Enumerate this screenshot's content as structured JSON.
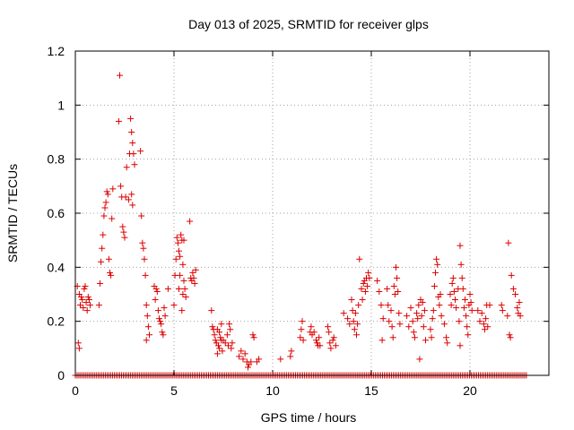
{
  "chart_data": {
    "type": "scatter",
    "title": "Day 013 of 2025, SRMTID for receiver glps",
    "xlabel": "GPS time / hours",
    "ylabel": "SRMTID / TECUs",
    "xlim": [
      0,
      24
    ],
    "ylim": [
      0,
      1.2
    ],
    "xticks": [
      0,
      5,
      10,
      15,
      20
    ],
    "xtick_labels": [
      "0",
      "5",
      "10",
      "15",
      "20"
    ],
    "yticks": [
      0,
      0.2,
      0.4,
      0.6,
      0.8,
      1.0,
      1.2
    ],
    "ytick_labels": [
      "0",
      "0.2",
      "0.4",
      "0.6",
      "0.8",
      "1",
      "1.2"
    ],
    "grid": true,
    "marker": "+",
    "series": [
      {
        "name": "SRMTID",
        "color": "#dd0000",
        "baseline": {
          "y": 0,
          "x_from": 0,
          "x_to": 22.9,
          "step": 0.09
        },
        "points": [
          [
            0.1,
            0.33
          ],
          [
            0.15,
            0.12
          ],
          [
            0.2,
            0.3
          ],
          [
            0.25,
            0.26
          ],
          [
            0.3,
            0.29
          ],
          [
            0.35,
            0.28
          ],
          [
            0.4,
            0.25
          ],
          [
            0.45,
            0.32
          ],
          [
            0.5,
            0.33
          ],
          [
            0.55,
            0.27
          ],
          [
            0.6,
            0.24
          ],
          [
            0.65,
            0.29
          ],
          [
            0.7,
            0.28
          ],
          [
            0.75,
            0.26
          ],
          [
            0.2,
            0.1
          ],
          [
            1.2,
            0.26
          ],
          [
            1.25,
            0.34
          ],
          [
            1.3,
            0.42
          ],
          [
            1.35,
            0.47
          ],
          [
            1.4,
            0.52
          ],
          [
            1.45,
            0.59
          ],
          [
            1.5,
            0.62
          ],
          [
            1.55,
            0.64
          ],
          [
            1.6,
            0.68
          ],
          [
            1.65,
            0.67
          ],
          [
            1.7,
            0.43
          ],
          [
            1.75,
            0.38
          ],
          [
            1.8,
            0.37
          ],
          [
            1.85,
            0.58
          ],
          [
            1.9,
            0.69
          ],
          [
            2.2,
            0.94
          ],
          [
            2.25,
            1.11
          ],
          [
            2.3,
            0.7
          ],
          [
            2.35,
            0.66
          ],
          [
            2.4,
            0.55
          ],
          [
            2.45,
            0.53
          ],
          [
            2.5,
            0.51
          ],
          [
            2.55,
            0.66
          ],
          [
            2.6,
            0.77
          ],
          [
            2.7,
            0.65
          ],
          [
            2.75,
            0.82
          ],
          [
            2.8,
            0.95
          ],
          [
            2.85,
            0.9
          ],
          [
            2.9,
            0.86
          ],
          [
            2.95,
            0.82
          ],
          [
            3.0,
            0.78
          ],
          [
            2.85,
            0.67
          ],
          [
            2.9,
            0.63
          ],
          [
            3.3,
            0.83
          ],
          [
            3.35,
            0.59
          ],
          [
            3.4,
            0.49
          ],
          [
            3.45,
            0.47
          ],
          [
            3.5,
            0.43
          ],
          [
            3.55,
            0.37
          ],
          [
            3.6,
            0.26
          ],
          [
            3.65,
            0.22
          ],
          [
            3.7,
            0.18
          ],
          [
            3.75,
            0.15
          ],
          [
            3.6,
            0.13
          ],
          [
            4.0,
            0.33
          ],
          [
            4.05,
            0.28
          ],
          [
            4.1,
            0.32
          ],
          [
            4.15,
            0.31
          ],
          [
            4.2,
            0.24
          ],
          [
            4.25,
            0.21
          ],
          [
            4.3,
            0.2
          ],
          [
            4.35,
            0.19
          ],
          [
            4.4,
            0.16
          ],
          [
            4.45,
            0.15
          ],
          [
            4.5,
            0.25
          ],
          [
            4.55,
            0.22
          ],
          [
            4.7,
            0.32
          ],
          [
            5.0,
            0.26
          ],
          [
            5.05,
            0.37
          ],
          [
            5.1,
            0.43
          ],
          [
            5.15,
            0.51
          ],
          [
            5.2,
            0.49
          ],
          [
            5.25,
            0.46
          ],
          [
            5.3,
            0.44
          ],
          [
            5.35,
            0.52
          ],
          [
            5.4,
            0.5
          ],
          [
            5.45,
            0.41
          ],
          [
            5.5,
            0.35
          ],
          [
            5.55,
            0.32
          ],
          [
            5.6,
            0.29
          ],
          [
            5.4,
            0.24
          ],
          [
            5.45,
            0.3
          ],
          [
            5.3,
            0.37
          ],
          [
            5.25,
            0.32
          ],
          [
            5.5,
            0.5
          ],
          [
            5.8,
            0.57
          ],
          [
            5.85,
            0.36
          ],
          [
            5.9,
            0.35
          ],
          [
            5.95,
            0.38
          ],
          [
            6.0,
            0.36
          ],
          [
            6.05,
            0.34
          ],
          [
            6.1,
            0.39
          ],
          [
            6.9,
            0.24
          ],
          [
            6.95,
            0.18
          ],
          [
            7.0,
            0.17
          ],
          [
            7.05,
            0.15
          ],
          [
            7.1,
            0.13
          ],
          [
            7.15,
            0.12
          ],
          [
            7.2,
            0.17
          ],
          [
            7.25,
            0.11
          ],
          [
            7.3,
            0.1
          ],
          [
            7.35,
            0.14
          ],
          [
            7.4,
            0.13
          ],
          [
            7.45,
            0.09
          ],
          [
            7.5,
            0.13
          ],
          [
            7.6,
            0.12
          ],
          [
            7.7,
            0.15
          ],
          [
            7.75,
            0.11
          ],
          [
            7.8,
            0.19
          ],
          [
            7.85,
            0.17
          ],
          [
            7.9,
            0.1
          ],
          [
            7.95,
            0.12
          ],
          [
            7.2,
            0.08
          ],
          [
            7.3,
            0.16
          ],
          [
            7.4,
            0.19
          ],
          [
            8.3,
            0.07
          ],
          [
            8.4,
            0.09
          ],
          [
            8.5,
            0.06
          ],
          [
            8.6,
            0.08
          ],
          [
            8.7,
            0.05
          ],
          [
            8.75,
            0.03
          ],
          [
            8.8,
            0.04
          ],
          [
            8.9,
            0.05
          ],
          [
            9.0,
            0.15
          ],
          [
            9.05,
            0.14
          ],
          [
            9.2,
            0.05
          ],
          [
            9.3,
            0.06
          ],
          [
            10.4,
            0.06
          ],
          [
            10.9,
            0.07
          ],
          [
            10.95,
            0.09
          ],
          [
            11.4,
            0.14
          ],
          [
            11.45,
            0.17
          ],
          [
            11.5,
            0.2
          ],
          [
            11.55,
            0.13
          ],
          [
            11.9,
            0.16
          ],
          [
            11.95,
            0.18
          ],
          [
            12.0,
            0.15
          ],
          [
            12.1,
            0.16
          ],
          [
            12.2,
            0.13
          ],
          [
            12.25,
            0.12
          ],
          [
            12.3,
            0.11
          ],
          [
            12.35,
            0.14
          ],
          [
            12.4,
            0.11
          ],
          [
            12.8,
            0.18
          ],
          [
            12.85,
            0.16
          ],
          [
            12.9,
            0.12
          ],
          [
            12.95,
            0.1
          ],
          [
            13.05,
            0.13
          ],
          [
            13.1,
            0.14
          ],
          [
            13.2,
            0.11
          ],
          [
            13.6,
            0.23
          ],
          [
            13.8,
            0.21
          ],
          [
            13.9,
            0.19
          ],
          [
            14.0,
            0.28
          ],
          [
            14.05,
            0.24
          ],
          [
            14.1,
            0.2
          ],
          [
            14.15,
            0.17
          ],
          [
            14.2,
            0.23
          ],
          [
            14.25,
            0.15
          ],
          [
            14.3,
            0.19
          ],
          [
            14.35,
            0.26
          ],
          [
            14.4,
            0.43
          ],
          [
            14.5,
            0.32
          ],
          [
            14.55,
            0.28
          ],
          [
            14.6,
            0.34
          ],
          [
            14.65,
            0.35
          ],
          [
            14.7,
            0.31
          ],
          [
            14.75,
            0.36
          ],
          [
            14.8,
            0.33
          ],
          [
            14.85,
            0.38
          ],
          [
            14.9,
            0.36
          ],
          [
            15.3,
            0.35
          ],
          [
            15.4,
            0.31
          ],
          [
            15.5,
            0.26
          ],
          [
            15.55,
            0.13
          ],
          [
            15.6,
            0.21
          ],
          [
            15.8,
            0.32
          ],
          [
            15.85,
            0.26
          ],
          [
            15.9,
            0.2
          ],
          [
            16.0,
            0.24
          ],
          [
            16.05,
            0.18
          ],
          [
            16.1,
            0.14
          ],
          [
            16.15,
            0.33
          ],
          [
            16.2,
            0.3
          ],
          [
            16.25,
            0.4
          ],
          [
            16.3,
            0.36
          ],
          [
            16.35,
            0.31
          ],
          [
            16.4,
            0.23
          ],
          [
            16.45,
            0.19
          ],
          [
            16.8,
            0.22
          ],
          [
            16.9,
            0.18
          ],
          [
            17.0,
            0.25
          ],
          [
            17.1,
            0.2
          ],
          [
            17.15,
            0.16
          ],
          [
            17.2,
            0.14
          ],
          [
            17.3,
            0.23
          ],
          [
            17.35,
            0.21
          ],
          [
            17.4,
            0.26
          ],
          [
            17.45,
            0.06
          ],
          [
            17.5,
            0.28
          ],
          [
            17.55,
            0.22
          ],
          [
            17.6,
            0.27
          ],
          [
            17.65,
            0.18
          ],
          [
            17.7,
            0.24
          ],
          [
            17.75,
            0.13
          ],
          [
            18.0,
            0.17
          ],
          [
            18.05,
            0.14
          ],
          [
            18.1,
            0.21
          ],
          [
            18.15,
            0.24
          ],
          [
            18.2,
            0.33
          ],
          [
            18.25,
            0.38
          ],
          [
            18.3,
            0.43
          ],
          [
            18.35,
            0.41
          ],
          [
            18.4,
            0.29
          ],
          [
            18.45,
            0.26
          ],
          [
            18.5,
            0.3
          ],
          [
            18.55,
            0.22
          ],
          [
            18.7,
            0.19
          ],
          [
            18.8,
            0.14
          ],
          [
            18.85,
            0.12
          ],
          [
            19.0,
            0.3
          ],
          [
            19.05,
            0.26
          ],
          [
            19.1,
            0.34
          ],
          [
            19.15,
            0.36
          ],
          [
            19.2,
            0.31
          ],
          [
            19.25,
            0.28
          ],
          [
            19.3,
            0.25
          ],
          [
            19.4,
            0.32
          ],
          [
            19.45,
            0.2
          ],
          [
            19.5,
            0.48
          ],
          [
            19.55,
            0.41
          ],
          [
            19.6,
            0.36
          ],
          [
            19.65,
            0.32
          ],
          [
            19.7,
            0.25
          ],
          [
            19.75,
            0.28
          ],
          [
            19.8,
            0.22
          ],
          [
            19.85,
            0.18
          ],
          [
            19.9,
            0.15
          ],
          [
            19.95,
            0.26
          ],
          [
            20.0,
            0.3
          ],
          [
            20.05,
            0.27
          ],
          [
            20.1,
            0.24
          ],
          [
            19.5,
            0.11
          ],
          [
            20.4,
            0.24
          ],
          [
            20.5,
            0.2
          ],
          [
            20.6,
            0.23
          ],
          [
            20.7,
            0.19
          ],
          [
            20.75,
            0.17
          ],
          [
            20.8,
            0.21
          ],
          [
            20.85,
            0.26
          ],
          [
            20.9,
            0.18
          ],
          [
            21.0,
            0.26
          ],
          [
            21.6,
            0.26
          ],
          [
            21.65,
            0.24
          ],
          [
            21.9,
            0.22
          ],
          [
            21.95,
            0.49
          ],
          [
            22.0,
            0.15
          ],
          [
            22.05,
            0.14
          ],
          [
            22.1,
            0.37
          ],
          [
            22.2,
            0.32
          ],
          [
            22.3,
            0.3
          ],
          [
            22.4,
            0.25
          ],
          [
            22.45,
            0.23
          ],
          [
            22.5,
            0.27
          ],
          [
            22.55,
            0.22
          ]
        ]
      }
    ]
  }
}
